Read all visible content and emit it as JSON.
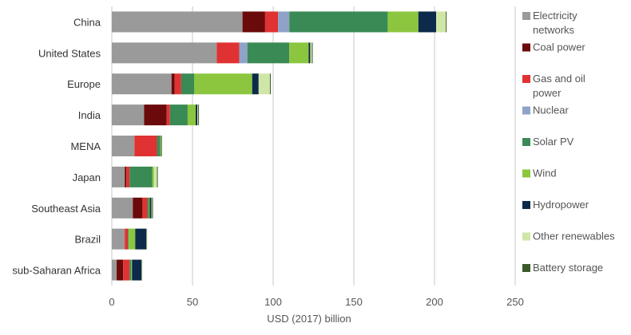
{
  "chart_data": {
    "type": "bar",
    "orientation": "horizontal",
    "stacked": true,
    "title": "",
    "xlabel": "USD (2017) billion",
    "ylabel": "",
    "xlim": [
      0,
      250
    ],
    "xticks": [
      0,
      50,
      100,
      150,
      200,
      250
    ],
    "grid": "vertical",
    "legend_position": "right",
    "categories": [
      "China",
      "United States",
      "Europe",
      "India",
      "MENA",
      "Japan",
      "Southeast Asia",
      "Brazil",
      "sub-Saharan Africa"
    ],
    "series": [
      {
        "name": "Electricity networks",
        "color": "#9a9a9a",
        "values": [
          81,
          65,
          37,
          20,
          14,
          8,
          13,
          8,
          3
        ]
      },
      {
        "name": "Coal power",
        "color": "#6b0a0a",
        "values": [
          14,
          0,
          2,
          14,
          0,
          1,
          6,
          0,
          4
        ]
      },
      {
        "name": "Gas and oil power",
        "color": "#e03232",
        "values": [
          8,
          14,
          4,
          2,
          14,
          2,
          3,
          2,
          4
        ]
      },
      {
        "name": "Nuclear",
        "color": "#8fa3c9",
        "values": [
          7,
          5,
          0,
          0,
          0,
          0,
          0,
          0,
          0
        ]
      },
      {
        "name": "Solar PV",
        "color": "#3a8a55",
        "values": [
          61,
          26,
          8,
          11,
          2,
          14,
          1,
          0.5,
          1
        ]
      },
      {
        "name": "Wind",
        "color": "#8cc63f",
        "values": [
          19,
          12,
          36,
          5,
          0.5,
          1,
          0.5,
          4,
          0.5
        ]
      },
      {
        "name": "Hydropower",
        "color": "#0d2a4a",
        "values": [
          11,
          1,
          4,
          1,
          0,
          0,
          1,
          7,
          6
        ]
      },
      {
        "name": "Other renewables",
        "color": "#cfe6a8",
        "values": [
          6,
          1,
          7,
          0.5,
          0,
          2,
          0.5,
          0.5,
          0.5
        ]
      },
      {
        "name": "Battery storage",
        "color": "#3b5a2a",
        "values": [
          0.5,
          0.5,
          0.5,
          0.5,
          0.5,
          0.5,
          0.5,
          0,
          0
        ]
      }
    ]
  }
}
